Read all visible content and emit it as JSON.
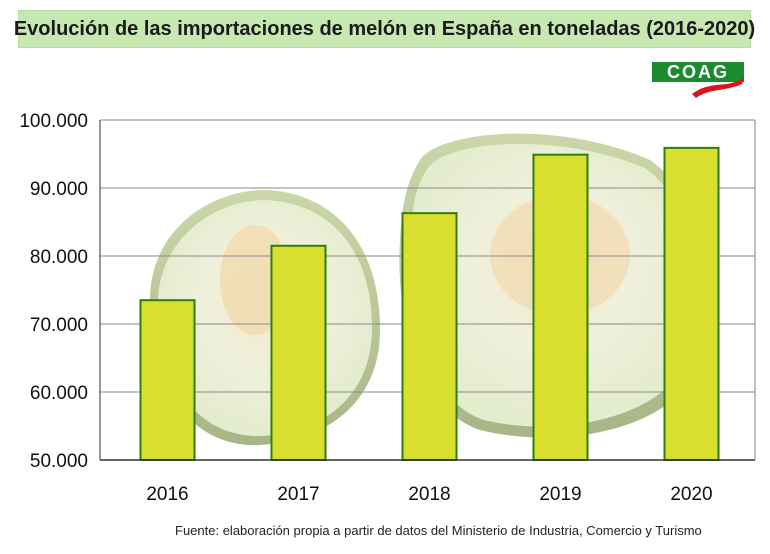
{
  "title": "Evolución de las importaciones de melón en España en toneladas (2016-2020)",
  "logo_text": "COAG",
  "source": "Fuente: elaboración propia a partir de datos del Ministerio de Industria, Comercio y Turismo",
  "colors": {
    "bar_fill": "#d9df2e",
    "bar_stroke": "#2f7d0f",
    "title_bg": "#c8e8b2",
    "logo_green": "#1c8a2e",
    "logo_red": "#d8141c"
  },
  "chart_data": {
    "type": "bar",
    "categories": [
      "2016",
      "2017",
      "2018",
      "2019",
      "2020"
    ],
    "values": [
      73500,
      81500,
      86300,
      94900,
      95900
    ],
    "ylim": [
      50000,
      100000
    ],
    "yticks": [
      "50.000",
      "60.000",
      "70.000",
      "80.000",
      "90.000",
      "100.000"
    ],
    "ytick_values": [
      50000,
      60000,
      70000,
      80000,
      90000,
      100000
    ],
    "grid": true,
    "xlabel": "",
    "ylabel": ""
  }
}
